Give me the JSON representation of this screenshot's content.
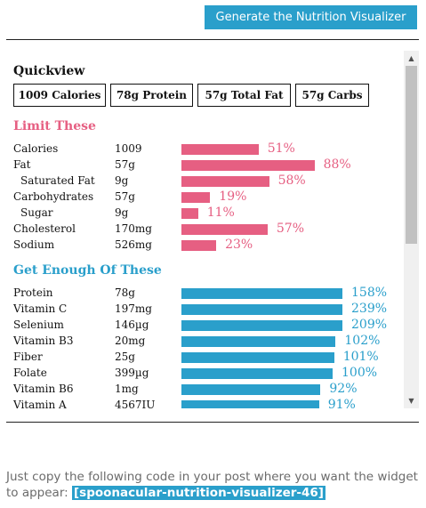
{
  "generate_button_label": "Generate the Nutrition Visualizer",
  "quickview": {
    "title": "Quickview",
    "boxes": [
      "1009 Calories",
      "78g Protein",
      "57g Total Fat",
      "57g Carbs"
    ]
  },
  "limit_section": {
    "title": "Limit These",
    "color": "#e65f82",
    "rows": [
      {
        "name": "Calories",
        "amount": "1009",
        "percent": "51%",
        "value": 51,
        "indent": false
      },
      {
        "name": "Fat",
        "amount": "57g",
        "percent": "88%",
        "value": 88,
        "indent": false
      },
      {
        "name": "Saturated Fat",
        "amount": "9g",
        "percent": "58%",
        "value": 58,
        "indent": true
      },
      {
        "name": "Carbohydrates",
        "amount": "57g",
        "percent": "19%",
        "value": 19,
        "indent": false
      },
      {
        "name": "Sugar",
        "amount": "9g",
        "percent": "11%",
        "value": 11,
        "indent": true
      },
      {
        "name": "Cholesterol",
        "amount": "170mg",
        "percent": "57%",
        "value": 57,
        "indent": false
      },
      {
        "name": "Sodium",
        "amount": "526mg",
        "percent": "23%",
        "value": 23,
        "indent": false
      }
    ]
  },
  "good_section": {
    "title": "Get Enough Of These",
    "color": "#2a9fcb",
    "rows": [
      {
        "name": "Protein",
        "amount": "78g",
        "percent": "158%",
        "value": 158
      },
      {
        "name": "Vitamin C",
        "amount": "197mg",
        "percent": "239%",
        "value": 239
      },
      {
        "name": "Selenium",
        "amount": "146µg",
        "percent": "209%",
        "value": 209
      },
      {
        "name": "Vitamin B3",
        "amount": "20mg",
        "percent": "102%",
        "value": 102
      },
      {
        "name": "Fiber",
        "amount": "25g",
        "percent": "101%",
        "value": 101
      },
      {
        "name": "Folate",
        "amount": "399µg",
        "percent": "100%",
        "value": 100
      },
      {
        "name": "Vitamin B6",
        "amount": "1mg",
        "percent": "92%",
        "value": 92
      },
      {
        "name": "Vitamin A",
        "amount": "4567IU",
        "percent": "91%",
        "value": 91
      }
    ]
  },
  "instructions": "Just copy the following code in your post where you want the widget to appear:",
  "shortcode": "[spoonacular-nutrition-visualizer-46]"
}
